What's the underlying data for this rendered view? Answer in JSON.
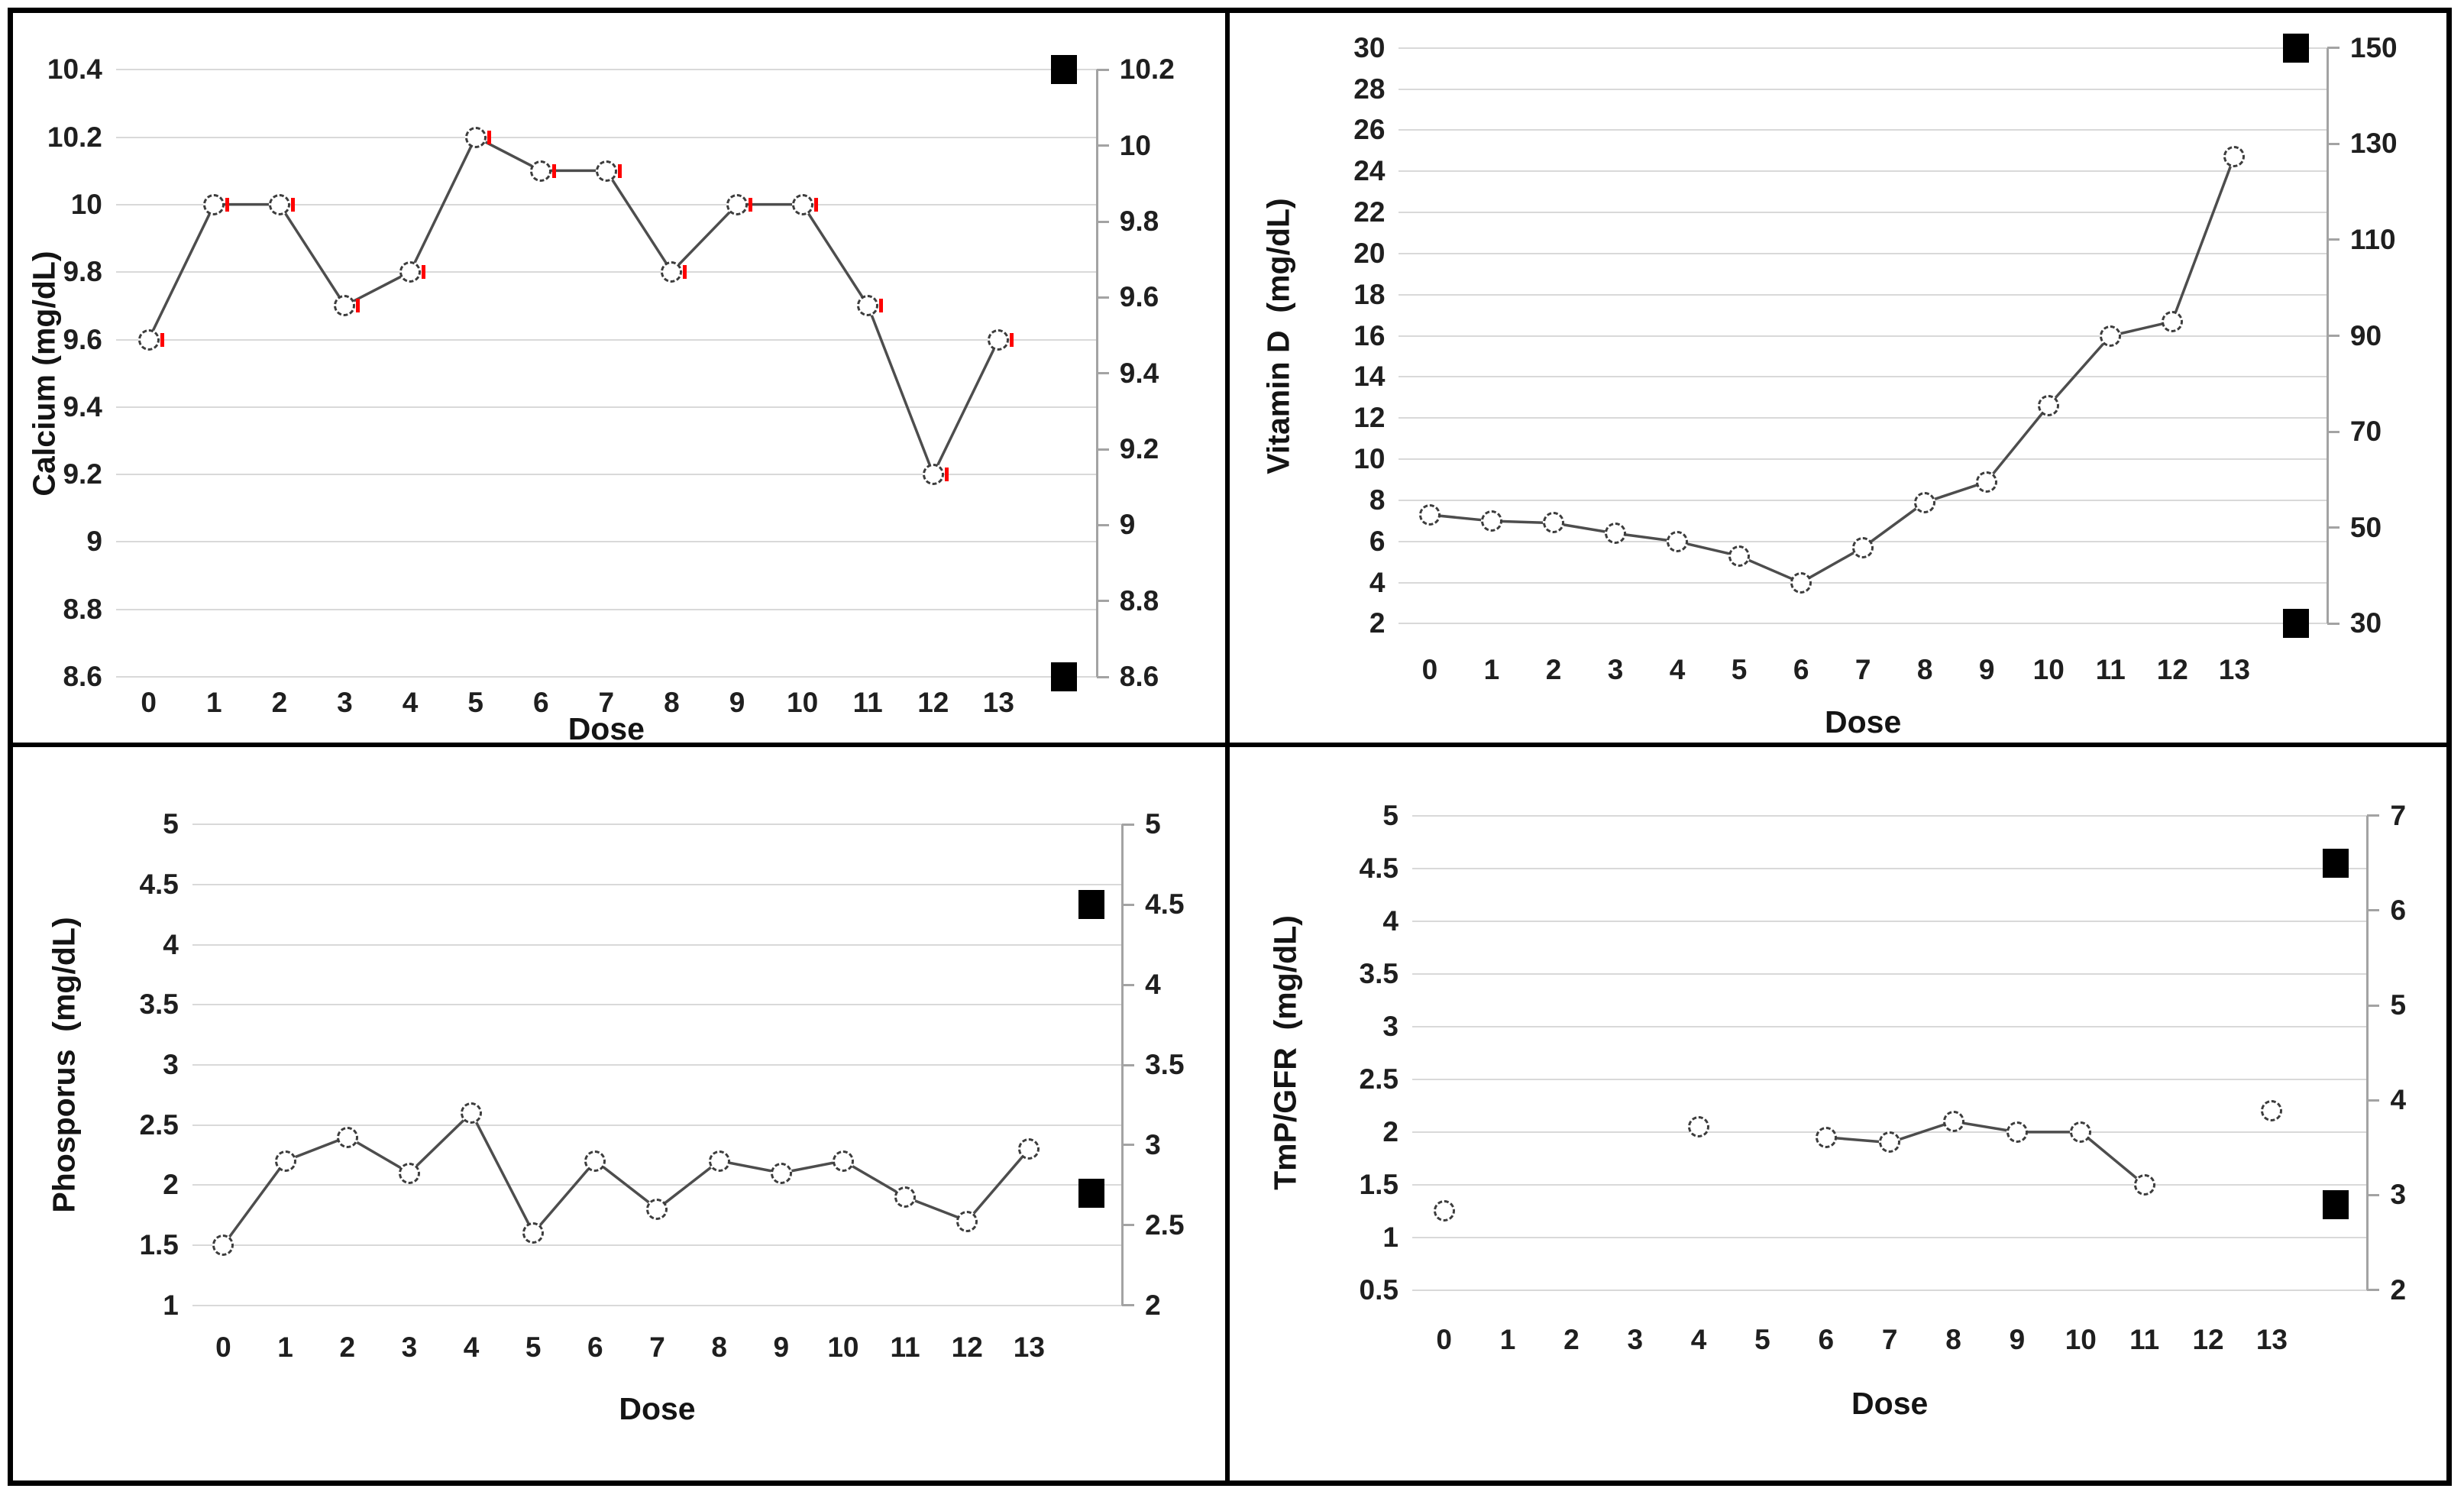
{
  "figure": {
    "description": "Four-panel laboratory trend figure: Calcium, Vitamin D, Phosporus and TmP/GFR versus Dose, each with secondary axis and black normal-range square markers",
    "panels": [
      "Calcium",
      "Vitamin D",
      "Phosporus",
      "TmP/GFR"
    ],
    "shared_x_label": "Dose"
  },
  "colors": {
    "series_line": "#4d4d4d",
    "marker_fill": "#ffffff",
    "marker_border": "#3d3d3d",
    "red_accent": "#fe0000",
    "gridline": "#d9d9d9",
    "secondary_axis": "#a3a3a3",
    "range_square": "#000000",
    "panel_border": "#000000"
  },
  "chart_data": [
    {
      "type": "line",
      "title": "",
      "ylabel": "Calcium (mg/dL)",
      "xlabel": "Dose",
      "categories": [
        "0",
        "1",
        "2",
        "3",
        "4",
        "5",
        "6",
        "7",
        "8",
        "9",
        "10",
        "11",
        "12",
        "13"
      ],
      "series": [
        {
          "name": "Calcium",
          "values": [
            9.6,
            10,
            10,
            9.7,
            9.8,
            10.2,
            10.1,
            10.1,
            9.8,
            10,
            10,
            9.7,
            9.2,
            9.6
          ]
        }
      ],
      "left_axis": {
        "max": 10.4,
        "min": 8.6,
        "ticks": [
          "10.4",
          "10.2",
          "10",
          "9.8",
          "9.6",
          "9.4",
          "9.2",
          "9",
          "8.8",
          "8.6"
        ]
      },
      "right_axis": {
        "max": 10.2,
        "min": 8.6,
        "ticks": [
          "10.2",
          "10",
          "9.8",
          "9.6",
          "9.4",
          "9.2",
          "9",
          "8.8",
          "8.6"
        ]
      },
      "normal_range": {
        "upper": 10.2,
        "lower": 8.6,
        "plotted_on": "right_axis"
      },
      "marker": "dashed-open-circle-with-red-tick",
      "grid": true,
      "legend": "none"
    },
    {
      "type": "line",
      "title": "",
      "ylabel": "Vitamin D  (mg/dL)",
      "xlabel": "Dose",
      "categories": [
        "0",
        "1",
        "2",
        "3",
        "4",
        "5",
        "6",
        "7",
        "8",
        "9",
        "10",
        "11",
        "12",
        "13"
      ],
      "series": [
        {
          "name": "Vitamin D",
          "values": [
            7.3,
            7.0,
            6.9,
            6.4,
            6.0,
            5.3,
            4.0,
            5.7,
            7.9,
            8.9,
            12.6,
            16.0,
            16.7,
            24.7
          ]
        }
      ],
      "left_axis": {
        "max": 30,
        "min": 2,
        "ticks": [
          "30",
          "28",
          "26",
          "24",
          "22",
          "20",
          "18",
          "16",
          "14",
          "12",
          "10",
          "8",
          "6",
          "4",
          "2"
        ]
      },
      "right_axis": {
        "max": 150,
        "min": 30,
        "ticks": [
          "150",
          "130",
          "110",
          "90",
          "70",
          "50",
          "30"
        ]
      },
      "normal_range": {
        "upper": 150,
        "lower": 30,
        "plotted_on": "right_axis"
      },
      "marker": "dashed-open-circle",
      "grid": true,
      "legend": "none"
    },
    {
      "type": "line",
      "title": "",
      "ylabel": "Phosporus  (mg/dL)",
      "xlabel": "Dose",
      "categories": [
        "0",
        "1",
        "2",
        "3",
        "4",
        "5",
        "6",
        "7",
        "8",
        "9",
        "10",
        "11",
        "12",
        "13"
      ],
      "series": [
        {
          "name": "Phosporus",
          "values": [
            1.5,
            2.2,
            2.4,
            2.1,
            2.6,
            1.6,
            2.2,
            1.8,
            2.2,
            2.1,
            2.2,
            1.9,
            1.7,
            2.3
          ]
        }
      ],
      "left_axis": {
        "max": 5,
        "min": 1,
        "ticks": [
          "5",
          "4.5",
          "4",
          "3.5",
          "3",
          "2.5",
          "2",
          "1.5",
          "1"
        ]
      },
      "right_axis": {
        "max": 5,
        "min": 2,
        "ticks": [
          "5",
          "4.5",
          "4",
          "3.5",
          "3",
          "2.5",
          "2"
        ]
      },
      "normal_range": {
        "upper": 4.5,
        "lower": 2.7,
        "plotted_on": "right_axis"
      },
      "marker": "dashed-open-circle",
      "grid": true,
      "legend": "none"
    },
    {
      "type": "line",
      "title": "",
      "ylabel": "TmP/GFR  (mg/dL)",
      "xlabel": "Dose",
      "categories": [
        "0",
        "1",
        "2",
        "3",
        "4",
        "5",
        "6",
        "7",
        "8",
        "9",
        "10",
        "11",
        "12",
        "13"
      ],
      "series": [
        {
          "name": "TmP/GFR",
          "values": [
            1.25,
            null,
            null,
            null,
            2.05,
            null,
            1.95,
            1.9,
            2.1,
            2.0,
            2.0,
            1.5,
            null,
            2.2
          ]
        }
      ],
      "left_axis": {
        "max": 5,
        "min": 0.5,
        "ticks": [
          "5",
          "4.5",
          "4",
          "3.5",
          "3",
          "2.5",
          "2",
          "1.5",
          "1",
          "0.5"
        ]
      },
      "right_axis": {
        "max": 7,
        "min": 2,
        "ticks": [
          "7",
          "6",
          "5",
          "4",
          "3",
          "2"
        ]
      },
      "normal_range": {
        "upper": 6.5,
        "lower": 2.9,
        "plotted_on": "right_axis"
      },
      "marker": "dashed-open-circle",
      "grid": true,
      "legend": "none"
    }
  ]
}
